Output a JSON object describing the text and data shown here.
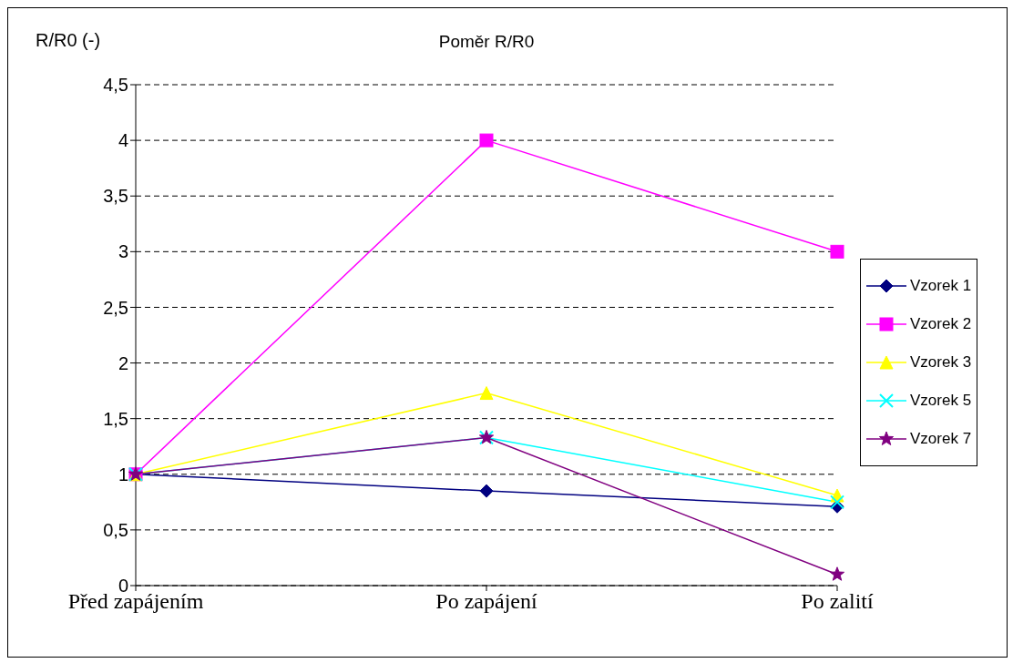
{
  "chart_data": {
    "type": "line",
    "title": "Poměr R/R0",
    "ylabel": "R/R0 (-)",
    "categories": [
      "Před zapájením",
      "Po zapájení",
      "Po zalití"
    ],
    "series": [
      {
        "name": "Vzorek 1",
        "color": "#000080",
        "marker": "diamond",
        "values": [
          1,
          0.85,
          0.71
        ]
      },
      {
        "name": "Vzorek 2",
        "color": "#ff00ff",
        "marker": "square",
        "values": [
          1,
          4,
          3
        ]
      },
      {
        "name": "Vzorek 3",
        "color": "#ffff00",
        "marker": "triangle",
        "values": [
          1,
          1.73,
          0.81
        ]
      },
      {
        "name": "Vzorek 5",
        "color": "#00ffff",
        "marker": "cross",
        "values": [
          1,
          1.33,
          0.75
        ]
      },
      {
        "name": "Vzorek 7",
        "color": "#800080",
        "marker": "star",
        "values": [
          1,
          1.33,
          0.1
        ]
      }
    ],
    "ylim": [
      0,
      4.5
    ],
    "yticks": [
      {
        "value": 0,
        "label": "0"
      },
      {
        "value": 0.5,
        "label": "0,5"
      },
      {
        "value": 1,
        "label": "1"
      },
      {
        "value": 1.5,
        "label": "1,5"
      },
      {
        "value": 2,
        "label": "2"
      },
      {
        "value": 2.5,
        "label": "2,5"
      },
      {
        "value": 3,
        "label": "3"
      },
      {
        "value": 3.5,
        "label": "3,5"
      },
      {
        "value": 4,
        "label": "4"
      },
      {
        "value": 4.5,
        "label": "4,5"
      }
    ],
    "grid": "y",
    "legend": "right",
    "line_style": "solid"
  }
}
